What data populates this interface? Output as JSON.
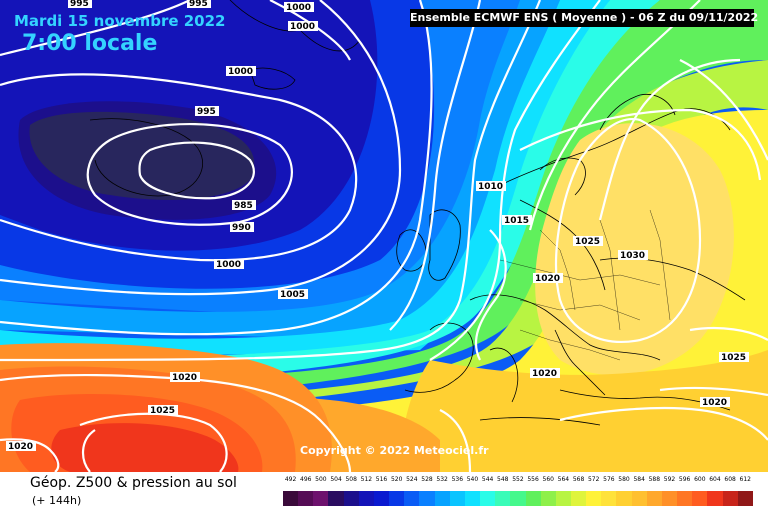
{
  "header": {
    "date": "Mardi 15 novembre 2022",
    "time": "7:00 locale",
    "model": "Ensemble ECMWF ENS  ( Moyenne )  -  06 Z du 09/11/2022"
  },
  "copyright": "Copyright © 2022 Meteociel.fr",
  "footer": {
    "title": "Géop. Z500 & pression au sol",
    "subtitle": "(+ 144h)"
  },
  "legend": {
    "values": [
      "492",
      "496",
      "500",
      "504",
      "508",
      "512",
      "516",
      "520",
      "524",
      "528",
      "532",
      "536",
      "540",
      "544",
      "548",
      "552",
      "556",
      "560",
      "564",
      "568",
      "572",
      "576",
      "580",
      "584",
      "588",
      "592",
      "596",
      "600",
      "604",
      "608",
      "612"
    ],
    "colors": [
      "#3a0a3a",
      "#550c55",
      "#6d116d",
      "#2a0c60",
      "#1c0f8c",
      "#1414b8",
      "#0a1ad0",
      "#0838e6",
      "#0a5cf5",
      "#0a80ff",
      "#07a3ff",
      "#0ac4ff",
      "#10e1ff",
      "#2afce8",
      "#3afcb8",
      "#45f88c",
      "#60f05c",
      "#8ef04a",
      "#b8f442",
      "#dff43c",
      "#fff238",
      "#ffe23a",
      "#ffd032",
      "#ffc030",
      "#ffa82c",
      "#ff9028",
      "#ff7624",
      "#ff5c20",
      "#f0361c",
      "#c8241a",
      "#901818"
    ]
  },
  "isobars": [
    {
      "label": "995"
    },
    {
      "label": "995"
    },
    {
      "label": "1000"
    },
    {
      "label": "1000"
    },
    {
      "label": "1000"
    },
    {
      "label": "995"
    },
    {
      "label": "985"
    },
    {
      "label": "990"
    },
    {
      "label": "1000"
    },
    {
      "label": "1005"
    },
    {
      "label": "1010"
    },
    {
      "label": "1015"
    },
    {
      "label": "1020"
    },
    {
      "label": "1025"
    },
    {
      "label": "1030"
    },
    {
      "label": "1020"
    },
    {
      "label": "1020"
    },
    {
      "label": "1025"
    },
    {
      "label": "1020"
    },
    {
      "label": "1025"
    },
    {
      "label": "1020"
    }
  ]
}
